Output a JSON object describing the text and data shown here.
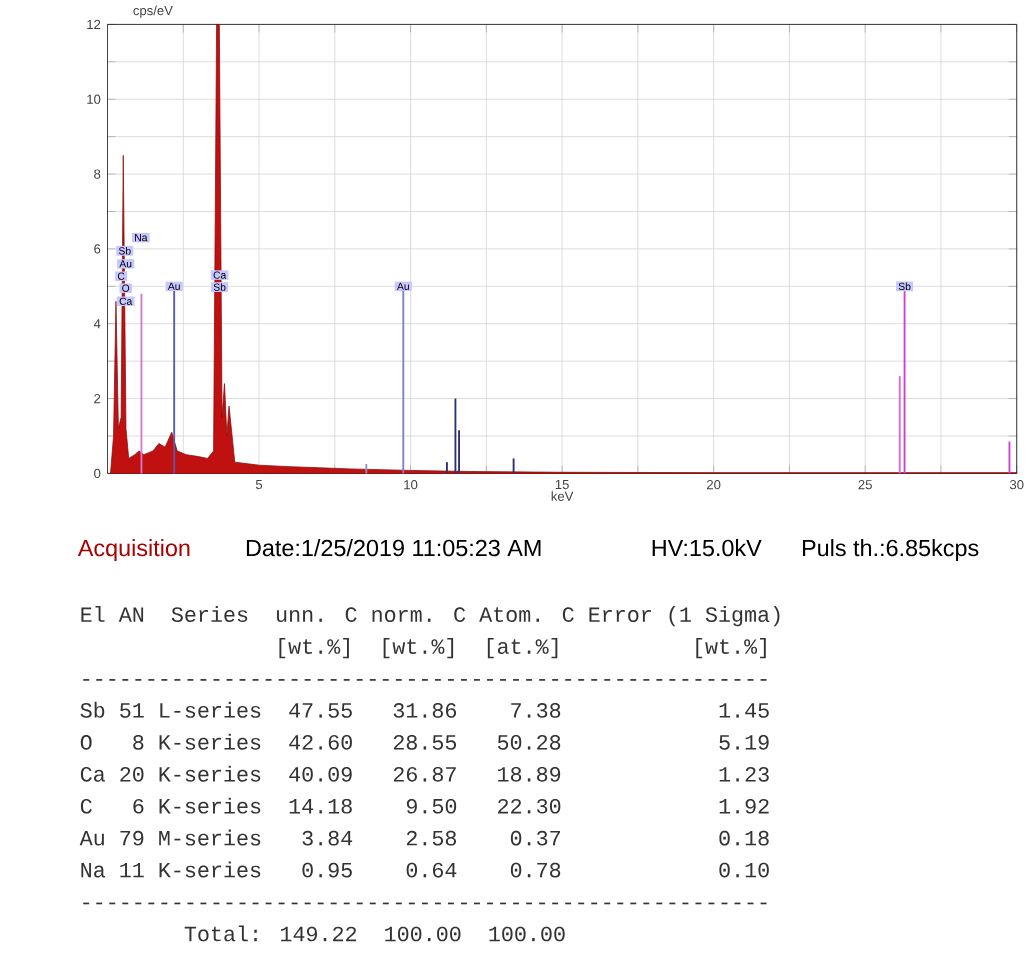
{
  "chart_data": {
    "type": "area",
    "xlabel": "keV",
    "ylabel": "cps/eV",
    "xlim": [
      0,
      30
    ],
    "ylim": [
      0,
      12
    ],
    "xticks": [
      {
        "value": 2.5,
        "label": null
      },
      5,
      {
        "value": 7.5,
        "label": null
      },
      10,
      {
        "value": 12.5,
        "label": null
      },
      15,
      {
        "value": 17.5,
        "label": null
      },
      20,
      {
        "value": 22.5,
        "label": null
      },
      25,
      {
        "value": 27.5,
        "label": null
      },
      30
    ],
    "yticks": [
      0,
      {
        "value": 1,
        "label": null
      },
      2,
      {
        "value": 3,
        "label": null
      },
      4,
      {
        "value": 5,
        "label": null
      },
      6,
      {
        "value": 7,
        "label": null
      },
      8,
      {
        "value": 9,
        "label": null
      },
      10,
      {
        "value": 11,
        "label": null
      },
      12
    ],
    "grid": true,
    "series": [
      {
        "color": "#c01010",
        "x": [
          0.1,
          0.2,
          0.28,
          0.36,
          0.45,
          0.52,
          0.61,
          0.7,
          0.9,
          1.04,
          1.2,
          1.5,
          1.7,
          1.9,
          2.12,
          2.3,
          2.6,
          3.0,
          3.3,
          3.5,
          3.6,
          3.69,
          3.78,
          3.86,
          3.94,
          4.01,
          4.2,
          5,
          6,
          7,
          8,
          9,
          10,
          12,
          15,
          20,
          25,
          30
        ],
        "values": [
          0,
          1.0,
          4.6,
          1.2,
          1.5,
          8.5,
          1.2,
          0.4,
          0.5,
          0.6,
          0.5,
          0.6,
          0.8,
          0.7,
          1.1,
          0.6,
          0.5,
          0.45,
          0.4,
          0.6,
          12,
          12,
          1.5,
          2.4,
          1.0,
          1.8,
          0.3,
          0.22,
          0.18,
          0.15,
          0.12,
          0.1,
          0.08,
          0.05,
          0.03,
          0.02,
          0.02,
          0.02
        ]
      },
      {
        "type": "bar",
        "x": [
          1.12,
          2.2,
          8.54,
          9.76,
          11.2,
          11.48,
          11.6,
          13.4,
          26.14,
          26.3,
          29.76
        ],
        "values": [
          4.8,
          4.9,
          0.25,
          4.9,
          0.3,
          2.0,
          1.15,
          0.4,
          2.6,
          4.9,
          0.85
        ],
        "colors": [
          "#d07ad0",
          "#5a5aa8",
          "#9090c8",
          "#8080c0",
          "#303070",
          "#303070",
          "#303070",
          "#303070",
          "#d070d0",
          "#d040d0",
          "#d040d0"
        ]
      }
    ],
    "annotations": [
      {
        "text": "Na",
        "x": 1.1,
        "y": 6.3
      },
      {
        "text": "Sb",
        "x": 0.57,
        "y": 5.95
      },
      {
        "text": "Au",
        "x": 0.6,
        "y": 5.6
      },
      {
        "text": "C",
        "x": 0.45,
        "y": 5.27
      },
      {
        "text": "O",
        "x": 0.6,
        "y": 4.95
      },
      {
        "text": "Ca",
        "x": 0.6,
        "y": 4.6
      },
      {
        "text": "Au",
        "x": 2.2,
        "y": 5.0
      },
      {
        "text": "Ca",
        "x": 3.7,
        "y": 5.3
      },
      {
        "text": "Sb",
        "x": 3.7,
        "y": 4.98
      },
      {
        "text": "Au",
        "x": 9.76,
        "y": 5.0
      },
      {
        "text": "Sb",
        "x": 26.3,
        "y": 5.0
      },
      "Acquisition",
      "Date:1/25/2019 11:05:23 AM",
      "HV:15.0kV",
      "Puls th.:6.85kcps",
      "El AN  Series  unn. C norm. C Atom. C Error (1 Sigma)",
      "               [wt.%]  [wt.%]  [at.%]          [wt.%]",
      "-----------------------------------------------------",
      "Sb 51 L-series  47.55   31.86    7.38            1.45",
      "O   8 K-series  42.60   28.55   50.28            5.19",
      "Ca 20 K-series  40.09   26.87   18.89            1.23",
      "C   6 K-series  14.18    9.50   22.30            1.92",
      "Au 79 M-series   3.84    2.58    0.37            0.18",
      "Na 11 K-series   0.95    0.64    0.78            0.10",
      "-----------------------------------------------------",
      "        Total: 149.22  100.00  100.00"
    ]
  }
}
